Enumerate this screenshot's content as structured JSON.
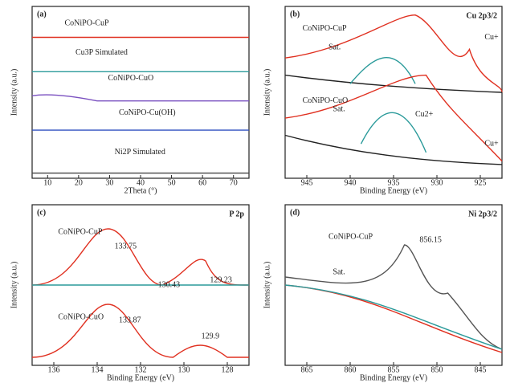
{
  "panels": [
    {
      "tag": "(a)",
      "title": "",
      "ylabel": "Intensity (a.u.)",
      "xlabel": "2Theta (°)",
      "xticks": [
        "10",
        "20",
        "30",
        "40",
        "50",
        "60",
        "70"
      ],
      "notes": [
        "CoNiPO-CuP",
        "Cu3P Simulated",
        "CoNiPO-CuO",
        "CoNiPO-Cu(OH)",
        "Ni2P Simulated"
      ]
    },
    {
      "tag": "(b)",
      "title": "Cu 2p3/2",
      "ylabel": "Intensity (a.u.)",
      "xlabel": "Binding Energy (eV)",
      "xticks": [
        "945",
        "940",
        "935",
        "930",
        "925"
      ],
      "notes": [
        "CoNiPO-CuP",
        "Sat.",
        "Cu+",
        "CoNiPO-CuO",
        "Sat.",
        "Cu2+",
        "Cu+"
      ]
    },
    {
      "tag": "(c)",
      "title": "P 2p",
      "ylabel": "Intensity (a.u.)",
      "xlabel": "Binding Energy (eV)",
      "xticks": [
        "136",
        "134",
        "132",
        "130",
        "128"
      ],
      "notes": [
        "CoNiPO-CuP",
        "133.75",
        "130.43",
        "129.23",
        "CoNiPO-CuO",
        "133.87",
        "129.9"
      ]
    },
    {
      "tag": "(d)",
      "title": "Ni 2p3/2",
      "ylabel": "Intensity (a.u.)",
      "xlabel": "Binding Energy (eV)",
      "xticks": [
        "865",
        "860",
        "855",
        "850",
        "845"
      ],
      "notes": [
        "CoNiPO-CuP",
        "Sat.",
        "856.15"
      ]
    }
  ]
}
